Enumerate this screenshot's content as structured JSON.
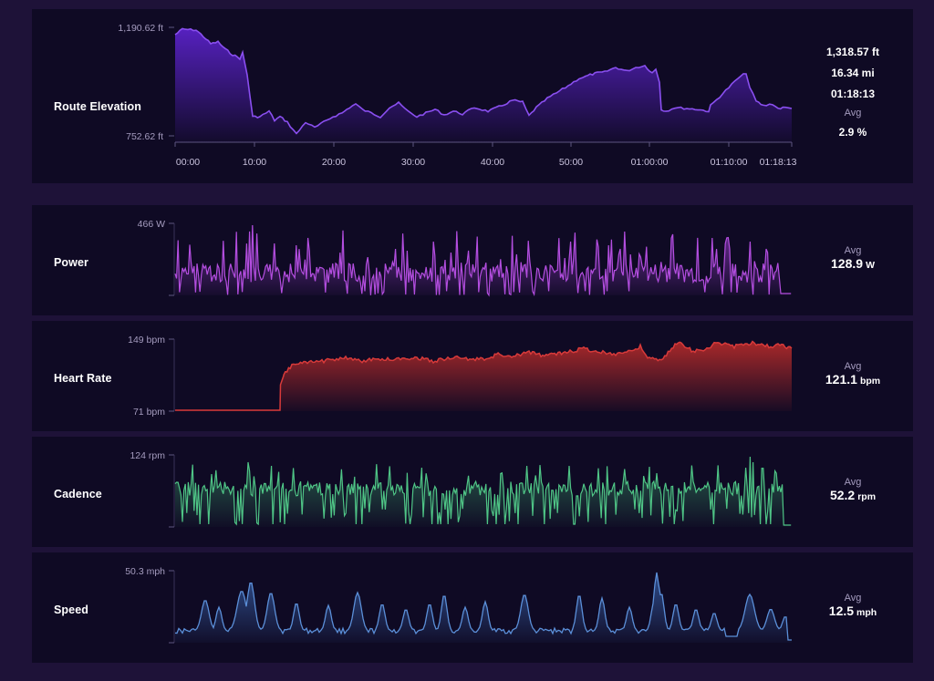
{
  "elevation": {
    "title": "Route Elevation",
    "y_max_label": "1,190.62 ft",
    "y_min_label": "752.62 ft",
    "x_labels": [
      "00:00",
      "10:00",
      "20:00",
      "30:00",
      "40:00",
      "50:00",
      "01:00:00",
      "01:10:00",
      "01:18:13"
    ],
    "stats": {
      "gain": "1,318.57 ft",
      "distance": "16.34 mi",
      "duration": "01:18:13",
      "avg_label": "Avg",
      "avg_grade": "2.9 %"
    },
    "color": "#8a4ff0"
  },
  "power": {
    "title": "Power",
    "y_max_label": "466 W",
    "avg_label": "Avg",
    "avg_value": "128.9",
    "avg_unit": "W",
    "color": "#b44ee0"
  },
  "heart_rate": {
    "title": "Heart Rate",
    "y_max_label": "149 bpm",
    "y_min_label": "71 bpm",
    "avg_label": "Avg",
    "avg_value": "121.1",
    "avg_unit": "bpm",
    "color": "#d83a3a"
  },
  "cadence": {
    "title": "Cadence",
    "y_max_label": "124 rpm",
    "avg_label": "Avg",
    "avg_value": "52.2",
    "avg_unit": "rpm",
    "color": "#4fc586"
  },
  "speed": {
    "title": "Speed",
    "y_max_label": "50.3 mph",
    "avg_label": "Avg",
    "avg_value": "12.5",
    "avg_unit": "mph",
    "color": "#5b8fd8"
  }
}
